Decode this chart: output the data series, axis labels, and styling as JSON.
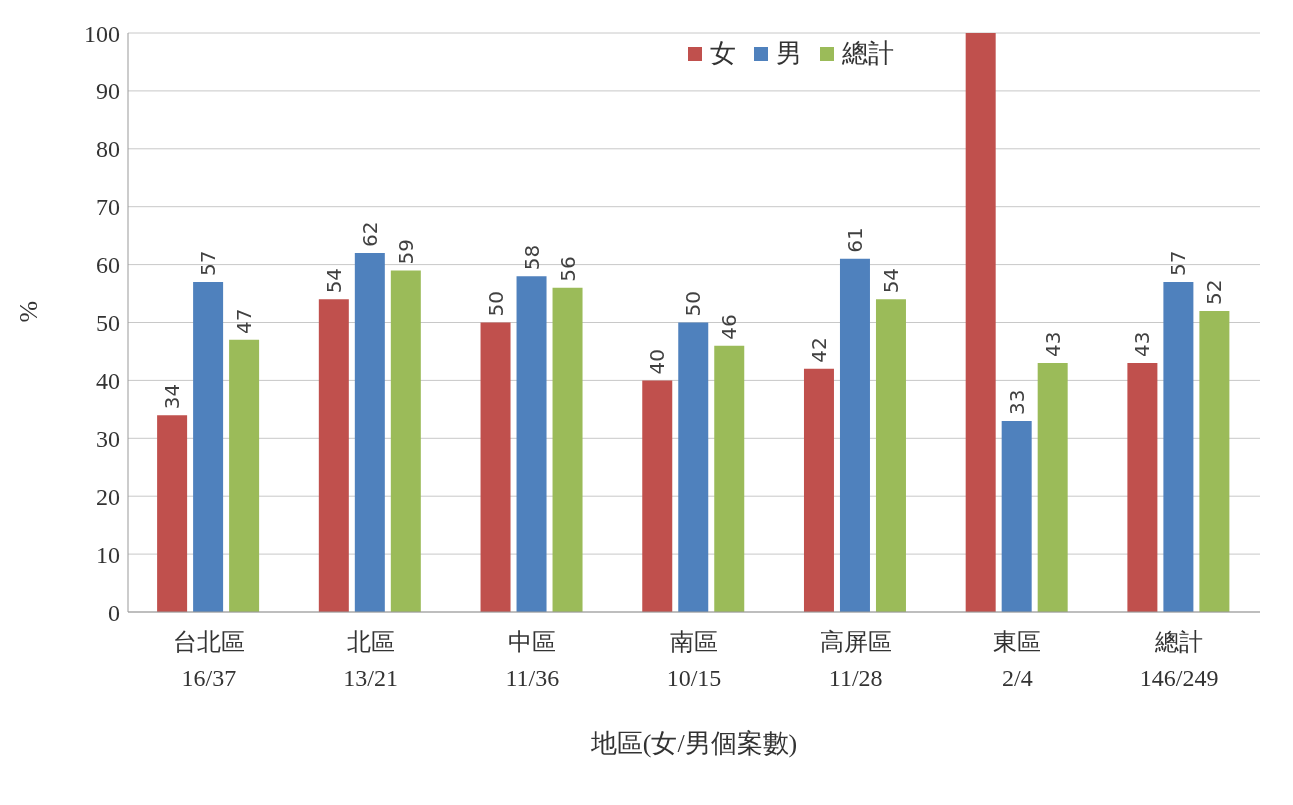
{
  "chart_data": {
    "type": "bar",
    "xlabel": "地區(女/男個案數)",
    "ylabel": "%",
    "categories": [
      "台北區\n16/37",
      "北區\n13/21",
      "中區\n11/36",
      "南區\n10/15",
      "高屏區\n11/28",
      "東區\n2/4",
      "總計\n146/249"
    ],
    "series": [
      {
        "name": "女",
        "color": "#c0504d",
        "values": [
          34,
          54,
          50,
          40,
          42,
          100,
          43
        ],
        "value_labels": [
          "34",
          "54",
          "50",
          "40",
          "42",
          null,
          "43"
        ]
      },
      {
        "name": "男",
        "color": "#4f81bd",
        "values": [
          57,
          62,
          58,
          50,
          61,
          33,
          57
        ],
        "value_labels": [
          "57",
          "62",
          "58",
          "50",
          "61",
          "33",
          "57"
        ]
      },
      {
        "name": "總計",
        "color": "#9bbb59",
        "values": [
          47,
          59,
          56,
          46,
          54,
          43,
          52
        ],
        "value_labels": [
          "47",
          "59",
          "56",
          "46",
          "54",
          "43",
          "52"
        ]
      }
    ],
    "ylim": [
      0,
      100
    ],
    "yticks": [
      0,
      10,
      20,
      30,
      40,
      50,
      60,
      70,
      80,
      90,
      100
    ],
    "grid": "y",
    "legend": "top right"
  }
}
